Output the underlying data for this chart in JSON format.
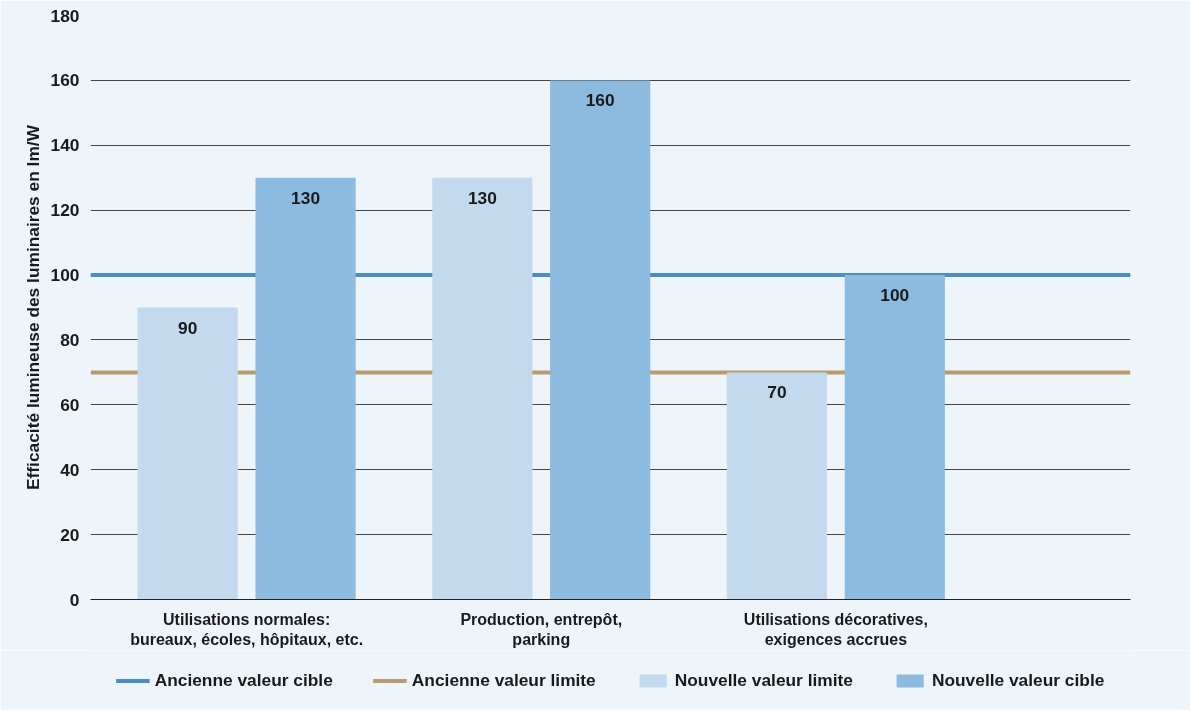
{
  "chart_data": {
    "type": "bar",
    "ylabel": "Efficacité lumineuse des luminaires en lm/W",
    "categories": [
      "Utilisations normales:\nbureaux, écoles, hôpitaux, etc.",
      "Production, entrepôt,\nparking",
      "Utilisations décoratives,\nexigences accrues"
    ],
    "series": [
      {
        "name": "Nouvelle valeur limite",
        "color": "#c2d9ee",
        "values": [
          90,
          130,
          70
        ]
      },
      {
        "name": "Nouvelle valeur cible",
        "color": "#8dbbe0",
        "values": [
          130,
          160,
          100
        ]
      }
    ],
    "ref_lines": [
      {
        "axis": "y",
        "value": 100,
        "label": "Ancienne valeur cible",
        "color": "#4a8bc8"
      },
      {
        "axis": "y",
        "value": 70,
        "label": "Ancienne valeur limite",
        "color": "#b89b6c"
      }
    ],
    "ylim": [
      0,
      180
    ],
    "yticks": [
      0,
      20,
      40,
      60,
      80,
      100,
      120,
      140,
      160,
      180
    ],
    "grid": "y",
    "legend": "bottom",
    "data_labels": true
  }
}
